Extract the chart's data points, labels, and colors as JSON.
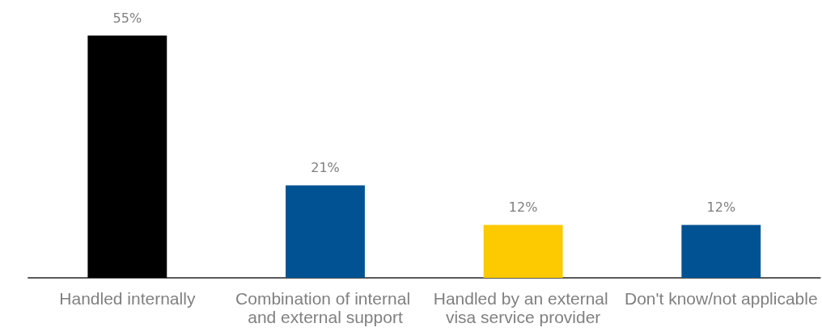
{
  "chart_data": {
    "type": "bar",
    "categories": [
      "Handled internally",
      "Combination of internal and external support",
      "Handled by an external visa service provider",
      "Don't know/not applicable"
    ],
    "values": [
      55,
      21,
      12,
      12
    ],
    "colors": [
      "#000000",
      "#005293",
      "#fdc900",
      "#005293"
    ],
    "value_labels": [
      "55%",
      "21%",
      "12%",
      "12%"
    ],
    "tick_labels": "x"
  }
}
